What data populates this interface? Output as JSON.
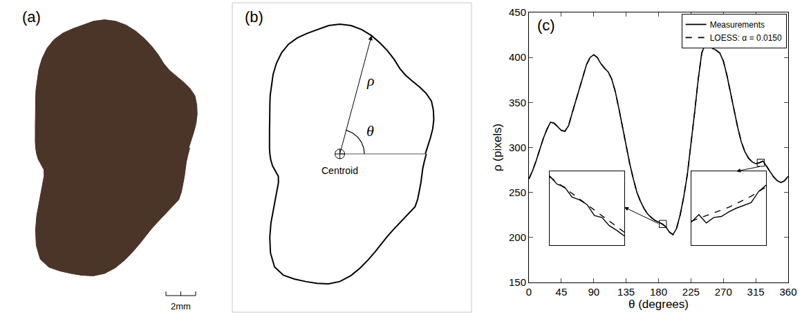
{
  "panels": [
    {
      "label": "(a)",
      "scale_bar": "2mm",
      "color": "#4b3428"
    },
    {
      "label": "(b)",
      "rho_label": "ρ",
      "theta_label": "θ",
      "centroid_label": "Centroid",
      "arrow_theta": 75
    }
  ],
  "chart_data": {
    "type": "line",
    "label": "(c)",
    "x_label": "θ (degrees)",
    "y_label": "ρ (pixels)",
    "x": [
      0,
      5,
      10,
      15,
      20,
      25,
      30,
      35,
      40,
      45,
      50,
      55,
      60,
      65,
      70,
      75,
      80,
      85,
      90,
      95,
      100,
      105,
      110,
      115,
      120,
      125,
      130,
      135,
      140,
      145,
      150,
      155,
      160,
      165,
      170,
      175,
      180,
      185,
      190,
      195,
      200,
      205,
      210,
      215,
      220,
      225,
      230,
      235,
      240,
      245,
      250,
      255,
      260,
      265,
      270,
      275,
      280,
      285,
      290,
      295,
      300,
      305,
      310,
      315,
      320,
      325,
      330,
      335,
      340,
      345,
      350,
      355,
      360
    ],
    "series": [
      {
        "name": "Measurements",
        "color": "#000000",
        "line_style": "solid",
        "values": [
          265,
          274,
          285,
          298,
          310,
          320,
          328,
          327,
          323,
          319,
          318,
          324,
          338,
          352,
          366,
          380,
          392,
          400,
          403,
          400,
          393,
          388,
          384,
          376,
          362,
          343,
          322,
          300,
          282,
          265,
          250,
          240,
          232,
          226,
          222,
          219,
          217,
          215,
          212,
          206,
          203,
          210,
          225,
          245,
          270,
          302,
          338,
          375,
          405,
          415,
          413,
          410,
          408,
          405,
          396,
          380,
          360,
          340,
          322,
          306,
          295,
          288,
          284,
          282,
          283,
          285,
          279,
          272,
          267,
          263,
          261,
          263,
          268
        ]
      },
      {
        "name": "LOESS: α = 0.0150",
        "color": "#000000",
        "line_style": "dashed",
        "values": [
          265,
          274,
          285,
          298,
          310,
          320,
          328,
          327,
          323,
          319,
          318,
          324,
          338,
          352,
          366,
          380,
          392,
          400,
          403,
          400,
          393,
          388,
          384,
          376,
          362,
          343,
          322,
          300,
          282,
          265,
          250,
          240,
          232,
          226,
          222,
          219,
          217,
          215,
          212,
          206,
          203,
          210,
          225,
          245,
          270,
          302,
          338,
          375,
          405,
          415,
          413,
          410,
          408,
          405,
          396,
          380,
          360,
          340,
          322,
          306,
          295,
          288,
          284,
          282,
          283,
          285,
          279,
          272,
          267,
          263,
          261,
          263,
          268
        ]
      }
    ],
    "xlim": [
      0,
      360
    ],
    "xticks": [
      0,
      45,
      90,
      135,
      180,
      225,
      270,
      315,
      360
    ],
    "ylim": [
      150,
      450
    ],
    "yticks": [
      150,
      200,
      250,
      300,
      350,
      400,
      450
    ],
    "grid": false,
    "legend": "upper right",
    "insets": [
      {
        "xlim": [
          181,
          191
        ],
        "ylim": [
          211,
          219
        ],
        "x": [
          181,
          182,
          183,
          184,
          185,
          186,
          187,
          188,
          189,
          190,
          191
        ],
        "measurements": [
          218.5,
          217.6,
          217.3,
          216.2,
          215.9,
          215.4,
          214.2,
          214.0,
          213.1,
          212.6,
          212.0
        ],
        "loess": [
          218.4,
          217.8,
          217.2,
          216.6,
          216.0,
          215.4,
          214.8,
          214.2,
          213.6,
          213.0,
          212.4
        ]
      },
      {
        "xlim": [
          317,
          327
        ],
        "ylim": [
          279,
          287
        ],
        "x": [
          317,
          318,
          319,
          320,
          321,
          322,
          323,
          324,
          325,
          326,
          327
        ],
        "measurements": [
          281.5,
          282.3,
          281.4,
          282.0,
          282.1,
          282.6,
          283.0,
          283.3,
          283.6,
          284.8,
          285.5
        ],
        "loess": [
          281.6,
          281.9,
          282.2,
          282.5,
          282.8,
          283.1,
          283.5,
          283.9,
          284.3,
          284.8,
          285.3
        ]
      }
    ]
  }
}
